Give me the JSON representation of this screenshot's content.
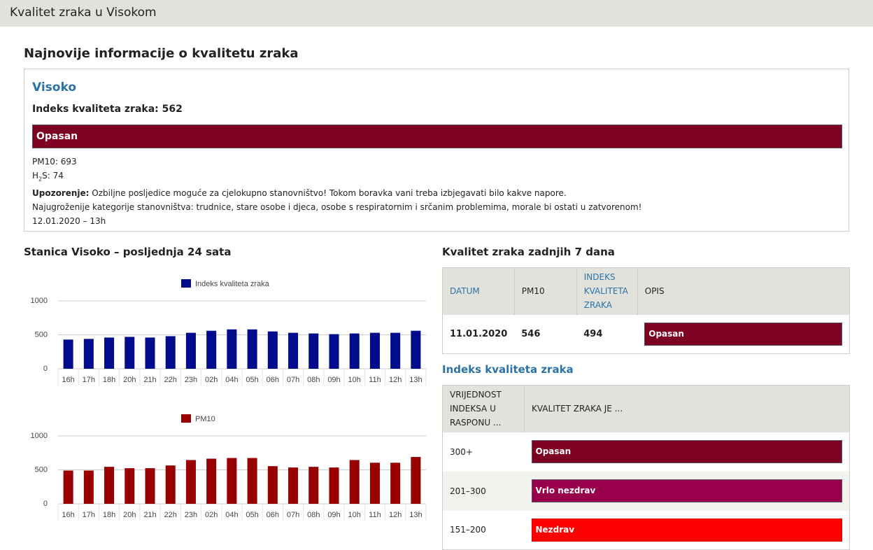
{
  "header": {
    "title": "Kvalitet zraka u Visokom"
  },
  "latest": {
    "heading": "Najnovije informacije o kvalitetu zraka",
    "station": "Visoko",
    "index_label": "Indeks kvaliteta zraka:",
    "index": 562,
    "category": "Opasan",
    "category_color": "#7e0023",
    "pm10_label": "PM10:",
    "pm10": 693,
    "h2s_parts": [
      "H",
      "2",
      "S:"
    ],
    "h2s": 74,
    "warning_label": "Upozorenje:",
    "warning": "Ozbiljne posljedice moguće za cjelokupno stanovništvo! Tokom boravka vani treba izbjegavati bilo kakve napore.",
    "risk": "Najugroženije kategorije stanovništva: trudnice, stare osobe i djeca, osobe s respiratornim i srčanim problemima, morale bi ostati u zatvorenom!",
    "time": "12.01.2020 – 13h"
  },
  "charts_heading": "Stanica Visoko – posljednja 24 sata",
  "chart_data": [
    {
      "type": "bar",
      "categories": [
        "16h",
        "17h",
        "18h",
        "20h",
        "21h",
        "22h",
        "23h",
        "02h",
        "04h",
        "05h",
        "06h",
        "07h",
        "08h",
        "09h",
        "10h",
        "11h",
        "12h",
        "13h"
      ],
      "series": [
        {
          "name": "Indeks kvaliteta zraka",
          "color": "#000c8c",
          "values": [
            430,
            440,
            460,
            470,
            460,
            480,
            530,
            560,
            580,
            580,
            550,
            530,
            520,
            510,
            520,
            530,
            530,
            560
          ]
        }
      ],
      "ylim": [
        0,
        1000
      ],
      "yticks": [
        0,
        500,
        1000
      ],
      "grid": true,
      "legend": "top"
    },
    {
      "type": "bar",
      "categories": [
        "16h",
        "17h",
        "18h",
        "20h",
        "21h",
        "22h",
        "23h",
        "02h",
        "04h",
        "05h",
        "06h",
        "07h",
        "08h",
        "09h",
        "10h",
        "11h",
        "12h",
        "13h"
      ],
      "series": [
        {
          "name": "PM10",
          "color": "#990000",
          "values": [
            490,
            490,
            545,
            525,
            525,
            565,
            645,
            665,
            675,
            675,
            555,
            535,
            545,
            535,
            645,
            605,
            605,
            690
          ]
        }
      ],
      "ylim": [
        0,
        1000
      ],
      "yticks": [
        0,
        500,
        1000
      ],
      "grid": true,
      "legend": "top"
    }
  ],
  "week": {
    "title": "Kvalitet zraka zadnjih 7 dana",
    "headers": [
      "DATUM",
      "PM10",
      "INDEKS KVALITETA ZRAKA",
      "OPIS"
    ],
    "rows": [
      [
        "11.01.2020",
        546,
        494,
        "Opasan"
      ]
    ],
    "row_colors": [
      "#7e0023"
    ]
  },
  "scale": {
    "title": "Indeks kvaliteta zraka",
    "headers": [
      "VRIJEDNOST INDEKSA U RASPONU ...",
      "KVALITET ZRAKA JE ..."
    ],
    "rows": [
      [
        "300+",
        "Opasan"
      ],
      [
        "201–300",
        "Vrlo nezdrav"
      ],
      [
        "151–200",
        "Nezdrav"
      ]
    ],
    "colors": [
      "#7e0023",
      "#99004c",
      "#ff0000"
    ]
  }
}
